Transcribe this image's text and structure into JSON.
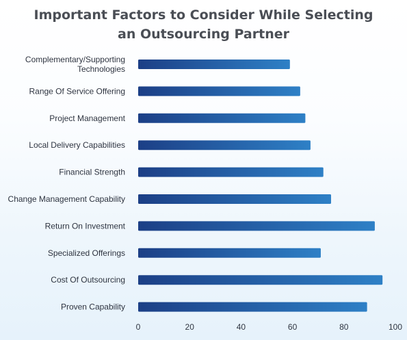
{
  "title_lines": [
    "Important Factors to Consider While Selecting",
    "an Outsourcing Partner"
  ],
  "colors": {
    "bar_start": "#1c3f86",
    "bar_end": "#2e80c6",
    "text": "#2e3440",
    "title": "#4a4e55"
  },
  "chart_data": {
    "type": "bar",
    "orientation": "horizontal",
    "title": "Important Factors to Consider While Selecting an Outsourcing Partner",
    "categories": [
      [
        "Complementary/Supporting",
        "Technologies"
      ],
      [
        "Range Of Service Offering"
      ],
      [
        "Project Management"
      ],
      [
        "Local Delivery Capabilities"
      ],
      [
        "Financial Strength"
      ],
      [
        "Change Management Capability"
      ],
      [
        "Return On Investment"
      ],
      [
        "Specialized Offerings"
      ],
      [
        "Cost Of Outsourcing"
      ],
      [
        "Proven Capability"
      ]
    ],
    "values": [
      59,
      63,
      65,
      67,
      72,
      75,
      92,
      71,
      95,
      89
    ],
    "xlim": [
      0,
      100
    ],
    "xticks": [
      0,
      20,
      40,
      60,
      80,
      100
    ],
    "grid": false,
    "legend": "none"
  }
}
